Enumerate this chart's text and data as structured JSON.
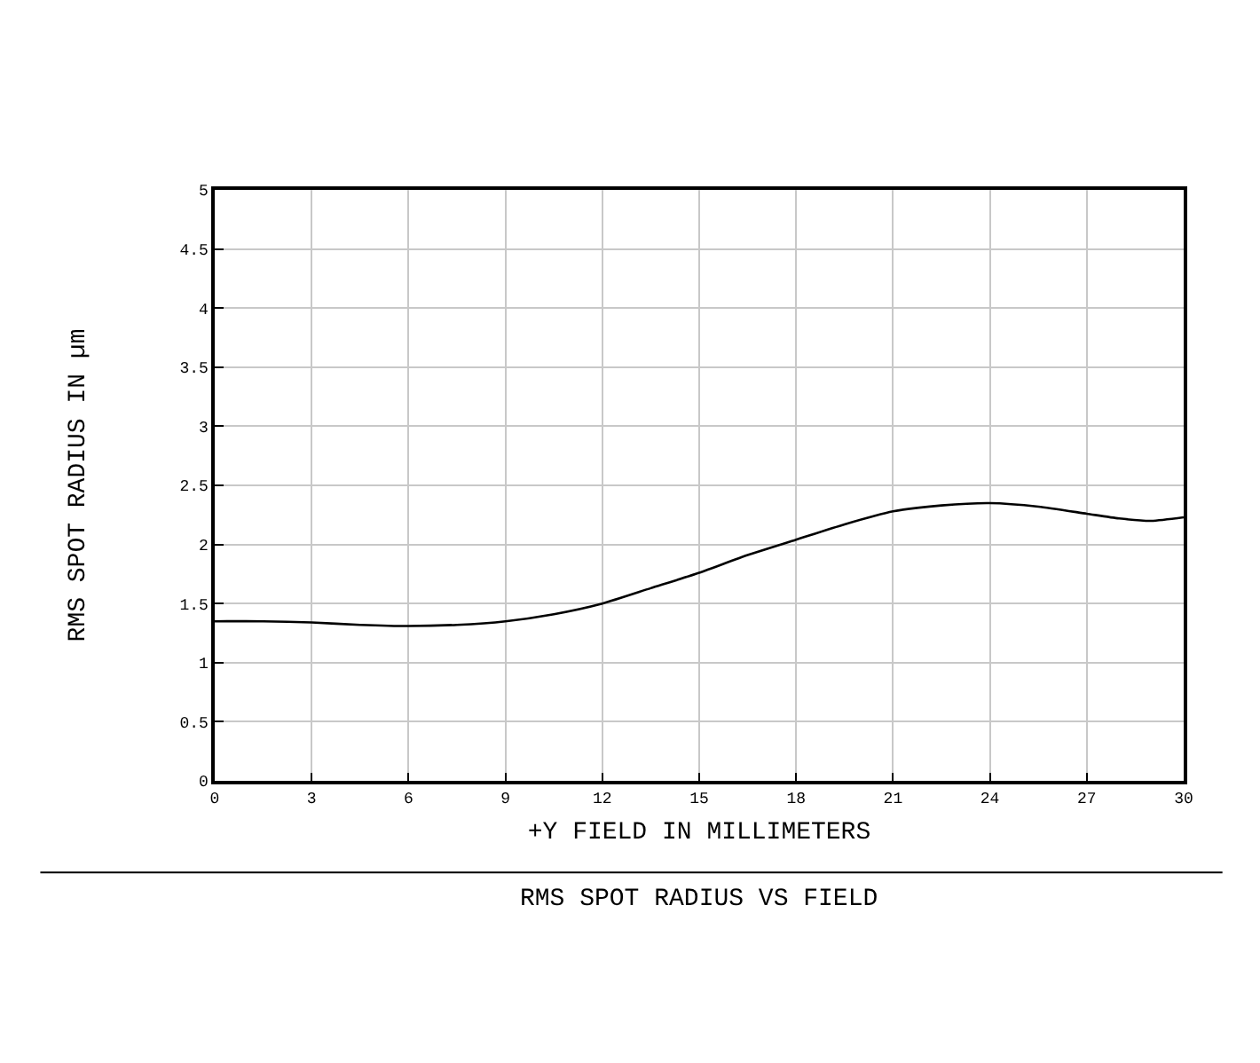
{
  "chart_data": {
    "type": "line",
    "title": "RMS SPOT RADIUS VS FIELD",
    "xlabel": "+Y FIELD IN MILLIMETERS",
    "ylabel": "RMS SPOT RADIUS IN µm",
    "x": [
      0,
      1.5,
      3,
      4.5,
      6,
      7.5,
      9,
      10.5,
      12,
      13.5,
      15,
      16.5,
      18,
      19.5,
      21,
      22.5,
      24,
      25.5,
      27,
      28,
      29,
      30
    ],
    "series": [
      {
        "color": "#000000",
        "values": [
          1.35,
          1.35,
          1.34,
          1.32,
          1.31,
          1.32,
          1.35,
          1.41,
          1.5,
          1.63,
          1.76,
          1.91,
          2.04,
          2.17,
          2.28,
          2.33,
          2.35,
          2.32,
          2.26,
          2.22,
          2.2,
          2.23
        ]
      }
    ],
    "xlim": [
      0,
      30
    ],
    "xticks": [
      0,
      3,
      6,
      9,
      12,
      15,
      18,
      21,
      24,
      27,
      30
    ],
    "ylim": [
      0,
      5
    ],
    "yticks": [
      0,
      0.5,
      1,
      1.5,
      2,
      2.5,
      3,
      3.5,
      4,
      4.5,
      5
    ],
    "grid": true,
    "marker": "none",
    "line_style": "solid"
  }
}
